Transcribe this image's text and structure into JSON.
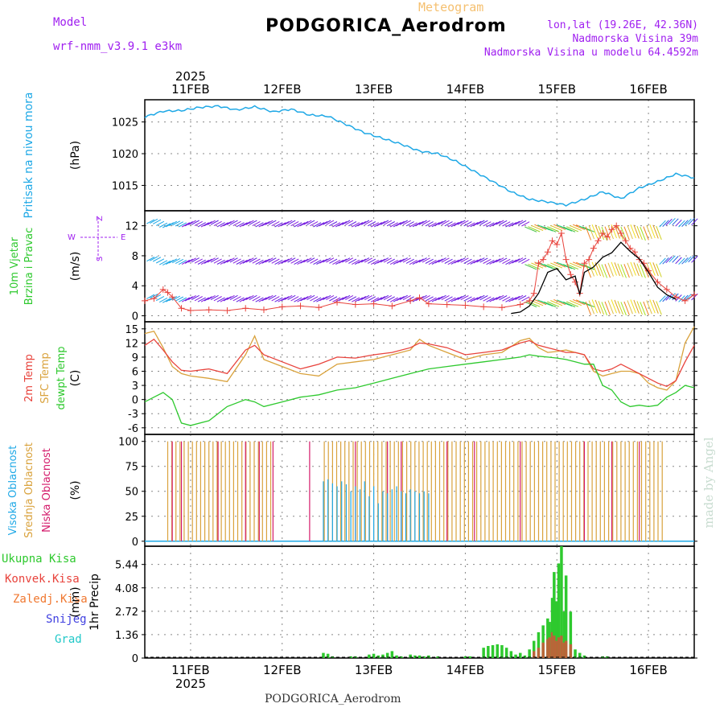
{
  "header": {
    "model_label": "Model",
    "model_name": "wrf-nmm_v3.9.1 e3km",
    "meteogram_label": "Meteogram",
    "station_title": "PODGORICA_Aerodrom",
    "lonlat": "lon,lat (19.26E, 42.36N)",
    "elevation": "Nadmorska Visina 39m",
    "model_elevation": "Nadmorska Visina u modelu 64.4592m",
    "bottom_title": "PODGORICA_Aerodrom",
    "watermark": "made by Angel"
  },
  "colors": {
    "pressure": "#1ea8e6",
    "temp2m": "#e8433c",
    "sfc_temp": "#d9a23c",
    "dewpt": "#2ec92e",
    "gust": "#e8433c",
    "wind_line": "#000000",
    "cloud_high": "#1ea8e6",
    "cloud_mid": "#d9a23c",
    "cloud_low": "#d41a6a",
    "precip_total": "#2ec92e",
    "precip_conv": "#e8433c"
  },
  "chart_data": [
    {
      "type": "line",
      "id": "pressure",
      "ylabel": "Pritisak na nivou mora",
      "unit": "(hPa)",
      "yticks": [
        1015,
        1020,
        1025
      ],
      "ylim": [
        1011,
        1028.5
      ],
      "x_days": [
        0.5,
        0.7,
        0.9,
        1.1,
        1.3,
        1.5,
        1.7,
        1.9,
        2.1,
        2.3,
        2.5,
        2.7,
        2.9,
        3.1,
        3.3,
        3.5,
        3.7,
        3.9,
        4.1,
        4.3,
        4.5,
        4.7,
        4.9,
        5.1,
        5.3,
        5.5,
        5.7,
        5.9,
        6.1,
        6.3,
        6.5
      ],
      "values": [
        1025.8,
        1026.7,
        1026.8,
        1027.3,
        1027.5,
        1026.9,
        1027.4,
        1026.6,
        1027.0,
        1026.1,
        1025.9,
        1024.6,
        1023.3,
        1022.4,
        1021.5,
        1020.4,
        1020.0,
        1018.8,
        1017.2,
        1015.6,
        1014.0,
        1012.8,
        1012.4,
        1011.9,
        1012.8,
        1014.0,
        1012.9,
        1014.6,
        1015.6,
        1016.8,
        1016.2
      ]
    },
    {
      "type": "line",
      "id": "wind",
      "ylabel": "10m Vjetar Brzina i Pravac",
      "unit": "(m/s)",
      "direction_legend": [
        "Z",
        "W",
        "E",
        "S"
      ],
      "yticks": [
        0,
        4,
        8,
        12
      ],
      "ylim": [
        -0.8,
        14
      ],
      "gust_x": [
        0.5,
        0.6,
        0.7,
        0.75,
        0.8,
        0.9,
        1.0,
        1.2,
        1.4,
        1.6,
        1.8,
        2.0,
        2.2,
        2.4,
        2.6,
        2.8,
        3.0,
        3.2,
        3.4,
        3.5,
        3.6,
        3.8,
        4.0,
        4.2,
        4.4,
        4.6,
        4.7,
        4.75,
        4.8,
        4.85,
        4.9,
        4.95,
        5.0,
        5.05,
        5.1,
        5.15,
        5.2,
        5.25,
        5.3,
        5.35,
        5.4,
        5.45,
        5.5,
        5.55,
        5.6,
        5.65,
        5.7,
        5.75,
        5.8,
        5.85,
        5.9,
        5.95,
        6.0,
        6.1,
        6.2,
        6.3,
        6.4,
        6.5
      ],
      "gust_values": [
        2.0,
        2.3,
        3.5,
        3.1,
        2.5,
        1.0,
        0.7,
        0.8,
        0.7,
        1.0,
        0.8,
        1.2,
        1.3,
        1.1,
        1.8,
        1.5,
        1.6,
        1.3,
        2.0,
        2.4,
        1.6,
        1.5,
        1.4,
        1.2,
        1.1,
        1.5,
        2.0,
        3.0,
        7.0,
        7.5,
        8.5,
        10.0,
        9.5,
        11.0,
        7.5,
        5.5,
        4.5,
        3.0,
        7.0,
        7.5,
        9.0,
        10.0,
        11.0,
        10.5,
        11.5,
        12.0,
        11.0,
        10.0,
        9.0,
        8.5,
        7.5,
        7.0,
        6.0,
        4.5,
        3.5,
        2.5,
        2.0,
        2.8
      ],
      "speed_x": [
        4.5,
        4.6,
        4.7,
        4.8,
        4.9,
        5.0,
        5.1,
        5.2,
        5.25,
        5.3,
        5.4,
        5.5,
        5.6,
        5.7,
        5.8,
        5.9,
        6.0,
        6.1,
        6.2,
        6.3
      ],
      "speed_values": [
        0.3,
        0.5,
        1.3,
        3.0,
        5.8,
        6.3,
        4.8,
        5.3,
        2.8,
        5.8,
        6.5,
        7.8,
        8.4,
        9.8,
        8.6,
        7.6,
        5.8,
        3.8,
        2.8,
        2.2
      ],
      "arrow_rows": [
        2,
        7,
        12
      ]
    },
    {
      "type": "line",
      "id": "temperature",
      "ylabel": [
        "2m Temp",
        "SFC Temp",
        "dewpt Temp"
      ],
      "unit": "(C)",
      "yticks": [
        -6,
        -3,
        0,
        3,
        6,
        9,
        12,
        15
      ],
      "ylim": [
        -7.4,
        16.5
      ],
      "x_days": [
        0.5,
        0.6,
        0.7,
        0.8,
        0.9,
        1.0,
        1.2,
        1.4,
        1.6,
        1.7,
        1.8,
        2.0,
        2.2,
        2.4,
        2.6,
        2.8,
        3.0,
        3.2,
        3.4,
        3.5,
        3.6,
        3.8,
        4.0,
        4.2,
        4.4,
        4.6,
        4.7,
        4.8,
        4.9,
        5.0,
        5.1,
        5.2,
        5.3,
        5.4,
        5.5,
        5.6,
        5.7,
        5.8,
        5.9,
        6.0,
        6.1,
        6.2,
        6.3,
        6.4,
        6.5
      ],
      "temp2m": [
        11.5,
        12.8,
        10.5,
        8.0,
        6.2,
        6.0,
        6.5,
        5.5,
        10.5,
        11.5,
        9.5,
        8.0,
        6.5,
        7.5,
        9.0,
        8.8,
        9.5,
        10.0,
        11.0,
        12.0,
        11.8,
        11.0,
        9.5,
        10.0,
        10.5,
        12.0,
        12.5,
        11.5,
        11.0,
        10.5,
        10.0,
        10.0,
        9.5,
        6.5,
        6.0,
        6.5,
        7.5,
        6.5,
        5.5,
        4.5,
        3.5,
        2.8,
        4.0,
        8.0,
        11.5
      ],
      "sfc": [
        14.0,
        14.5,
        11.0,
        7.0,
        5.5,
        5.0,
        4.5,
        3.8,
        9.5,
        13.5,
        8.5,
        7.0,
        5.5,
        5.0,
        7.5,
        8.0,
        8.5,
        9.5,
        10.5,
        12.8,
        11.5,
        10.0,
        8.5,
        9.5,
        10.0,
        12.5,
        13.0,
        11.0,
        10.0,
        10.2,
        10.5,
        10.0,
        9.5,
        6.0,
        5.0,
        5.5,
        6.0,
        6.0,
        5.5,
        3.5,
        2.5,
        2.0,
        4.0,
        12.0,
        15.5
      ],
      "dewpt": [
        -0.5,
        0.5,
        1.5,
        0.0,
        -5.0,
        -5.5,
        -4.5,
        -1.5,
        0.0,
        -0.5,
        -1.5,
        -0.5,
        0.5,
        1.0,
        2.0,
        2.5,
        3.5,
        4.5,
        5.5,
        6.0,
        6.5,
        7.0,
        7.5,
        8.0,
        8.5,
        9.0,
        9.5,
        9.2,
        9.0,
        8.8,
        8.5,
        8.0,
        7.5,
        7.5,
        3.0,
        2.0,
        -0.5,
        -1.5,
        -1.2,
        -1.5,
        -1.2,
        0.5,
        1.5,
        3.0,
        2.5
      ]
    },
    {
      "type": "bar",
      "id": "clouds",
      "ylabel": [
        "Visoka Oblacnost",
        "Srednja Oblacnost",
        "Niska Oblacnost"
      ],
      "unit": "(%)",
      "yticks": [
        0,
        25,
        50,
        75,
        100
      ],
      "ylim": [
        -5,
        107
      ],
      "high_x": [
        2.45,
        2.5,
        2.55,
        2.6,
        2.65,
        2.7,
        2.75,
        2.8,
        2.85,
        2.9,
        2.95,
        3.0,
        3.05,
        3.1,
        3.15,
        3.2,
        3.25,
        3.3,
        3.35,
        3.4,
        3.45,
        3.5,
        3.55,
        3.6
      ],
      "high_values": [
        60,
        62,
        58,
        55,
        60,
        57,
        50,
        55,
        52,
        60,
        45,
        55,
        38,
        50,
        48,
        52,
        55,
        50,
        48,
        52,
        50,
        48,
        50,
        48
      ],
      "mid_start": 0.75,
      "mid_end": 6.15,
      "mid_value": 100,
      "low_x": [
        0.8,
        0.9,
        1.3,
        1.6,
        1.75,
        1.9,
        2.3,
        2.8,
        3.15,
        3.3,
        3.8,
        4.1,
        4.6,
        5.3,
        5.6,
        5.9
      ],
      "low_values": [
        100,
        100,
        100,
        100,
        100,
        100,
        100,
        100,
        100,
        100,
        100,
        100,
        100,
        100,
        100,
        100
      ]
    },
    {
      "type": "bar",
      "id": "precip",
      "ylabel": "1hr Precip",
      "unit": "(mm)",
      "legend": [
        "Ukupna Kisa",
        "Konvek.Kisa",
        "Zaledj.Kisa",
        "Snijeg",
        "Grad"
      ],
      "yticks": [
        0,
        1.36,
        2.72,
        4.08,
        5.44
      ],
      "ylim": [
        0,
        6.5
      ],
      "x_days": [
        2.45,
        2.5,
        2.55,
        2.75,
        2.8,
        2.95,
        3.0,
        3.05,
        3.1,
        3.15,
        3.2,
        3.25,
        3.3,
        3.4,
        3.45,
        3.5,
        3.55,
        3.6,
        3.7,
        4.0,
        4.05,
        4.2,
        4.25,
        4.3,
        4.35,
        4.4,
        4.45,
        4.5,
        4.55,
        4.6,
        4.65,
        4.7,
        4.75,
        4.8,
        4.85,
        4.9,
        4.92,
        4.95,
        4.97,
        5.0,
        5.02,
        5.05,
        5.08,
        5.1,
        5.15,
        5.2,
        5.25,
        5.3,
        5.5,
        5.55
      ],
      "total": [
        0.3,
        0.25,
        0.1,
        0.1,
        0.1,
        0.2,
        0.25,
        0.15,
        0.2,
        0.3,
        0.4,
        0.15,
        0.1,
        0.2,
        0.15,
        0.15,
        0.1,
        0.15,
        0.1,
        0.1,
        0.1,
        0.6,
        0.7,
        0.75,
        0.8,
        0.75,
        0.6,
        0.4,
        0.2,
        0.3,
        0.15,
        0.5,
        1.0,
        1.5,
        1.9,
        2.3,
        2.1,
        3.5,
        5.0,
        3.3,
        5.5,
        6.5,
        2.7,
        4.8,
        2.7,
        0.5,
        0.3,
        0.15,
        0.1,
        0.1
      ],
      "conv": [
        0,
        0,
        0,
        0,
        0,
        0,
        0,
        0,
        0,
        0,
        0,
        0,
        0,
        0,
        0,
        0,
        0,
        0,
        0,
        0,
        0,
        0,
        0,
        0,
        0,
        0,
        0,
        0,
        0,
        0,
        0,
        0,
        0.4,
        0.6,
        0.9,
        1.1,
        1.2,
        1.5,
        1.3,
        1.0,
        1.2,
        1.3,
        0.9,
        1.0,
        0.8,
        0,
        0,
        0,
        0,
        0
      ]
    }
  ],
  "x_axis": {
    "year": "2025",
    "day_labels": [
      "11FEB",
      "12FEB",
      "13FEB",
      "14FEB",
      "15FEB",
      "16FEB"
    ],
    "day_positions": [
      1,
      2,
      3,
      4,
      5,
      6
    ],
    "xlim": [
      0.5,
      6.5
    ]
  }
}
